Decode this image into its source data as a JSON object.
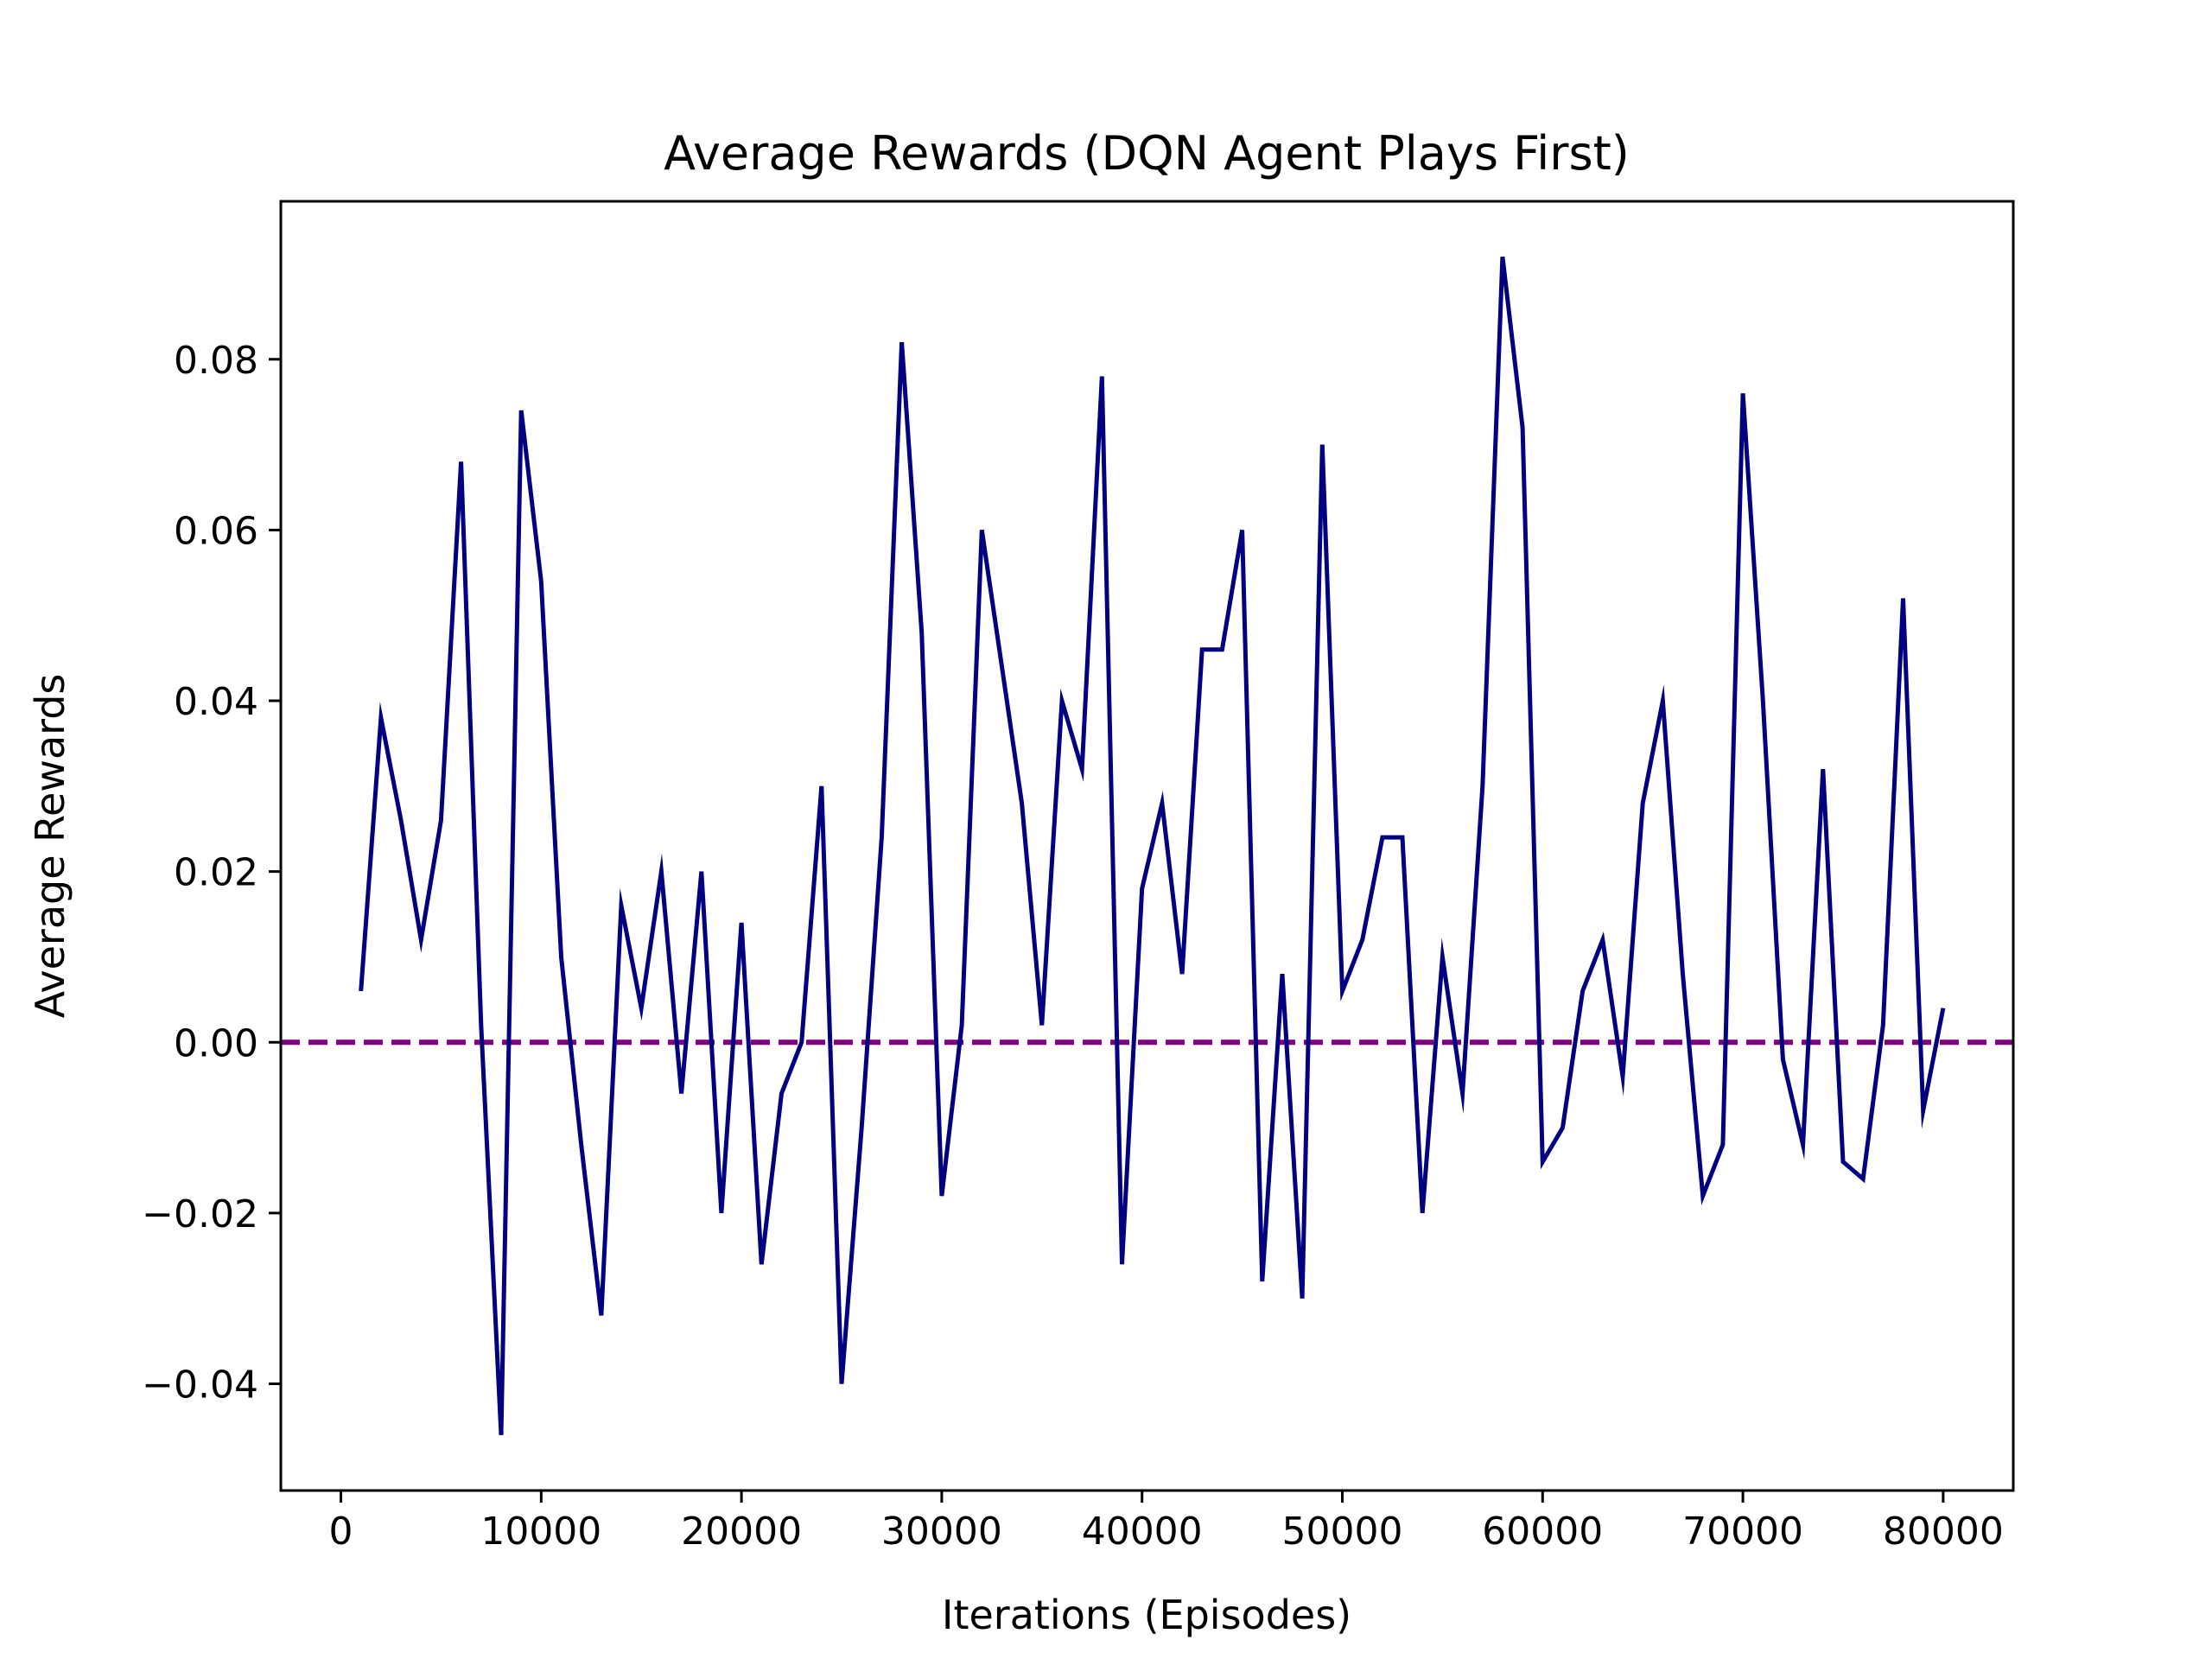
{
  "chart_data": {
    "type": "line",
    "title": "Average Rewards (DQN Agent Plays First)",
    "xlabel": "Iterations (Episodes)",
    "ylabel": "Average Rewards",
    "xlim": [
      -3000,
      83500
    ],
    "ylim": [
      -0.0525,
      0.0985
    ],
    "xticks": [
      0,
      10000,
      20000,
      30000,
      40000,
      50000,
      60000,
      70000,
      80000
    ],
    "xtick_labels": [
      "0",
      "10000",
      "20000",
      "30000",
      "40000",
      "50000",
      "60000",
      "70000",
      "80000"
    ],
    "yticks": [
      -0.04,
      -0.02,
      0.0,
      0.02,
      0.04,
      0.06,
      0.08
    ],
    "ytick_labels": [
      "−0.04",
      "−0.02",
      "0.00",
      "0.02",
      "0.04",
      "0.06",
      "0.08"
    ],
    "grid": false,
    "legend": "none",
    "series": [
      {
        "color": "#000080",
        "style": "solid",
        "x": [
          1000,
          2000,
          3000,
          4000,
          5000,
          6000,
          7000,
          8000,
          9000,
          10000,
          11000,
          12000,
          13000,
          14000,
          15000,
          16000,
          17000,
          18000,
          19000,
          20000,
          21000,
          22000,
          23000,
          24000,
          25000,
          26000,
          27000,
          28000,
          29000,
          30000,
          31000,
          32000,
          33000,
          34000,
          35000,
          36000,
          37000,
          38000,
          39000,
          40000,
          41000,
          42000,
          43000,
          44000,
          45000,
          46000,
          47000,
          48000,
          49000,
          50000,
          51000,
          52000,
          53000,
          54000,
          55000,
          56000,
          57000,
          58000,
          59000,
          60000,
          61000,
          62000,
          63000,
          64000,
          65000,
          66000,
          67000,
          68000,
          69000,
          70000,
          71000,
          72000,
          73000,
          74000,
          75000,
          76000,
          77000,
          78000,
          79000,
          80000
        ],
        "y": [
          0.006,
          0.038,
          0.026,
          0.012,
          0.026,
          0.068,
          0.002,
          -0.046,
          0.074,
          0.054,
          0.01,
          -0.012,
          -0.032,
          0.016,
          0.004,
          0.02,
          -0.006,
          0.02,
          -0.02,
          0.014,
          -0.026,
          -0.006,
          0.0,
          0.03,
          -0.04,
          -0.01,
          0.024,
          0.082,
          0.048,
          -0.018,
          0.002,
          0.06,
          0.044,
          0.028,
          0.002,
          0.04,
          0.032,
          0.078,
          -0.026,
          0.018,
          0.028,
          0.008,
          0.046,
          0.046,
          0.06,
          -0.028,
          0.008,
          -0.03,
          0.07,
          0.006,
          0.012,
          0.024,
          0.024,
          -0.02,
          0.01,
          -0.006,
          0.03,
          0.092,
          0.072,
          -0.014,
          -0.01,
          0.006,
          0.012,
          -0.004,
          0.028,
          0.04,
          0.008,
          -0.018,
          -0.012,
          0.076,
          0.04,
          -0.002,
          -0.012,
          0.032,
          -0.014,
          -0.016,
          0.002,
          0.052,
          -0.008,
          0.004
        ]
      }
    ],
    "reference_line": {
      "y": 0.0,
      "color": "#800080",
      "style": "dashed"
    }
  }
}
